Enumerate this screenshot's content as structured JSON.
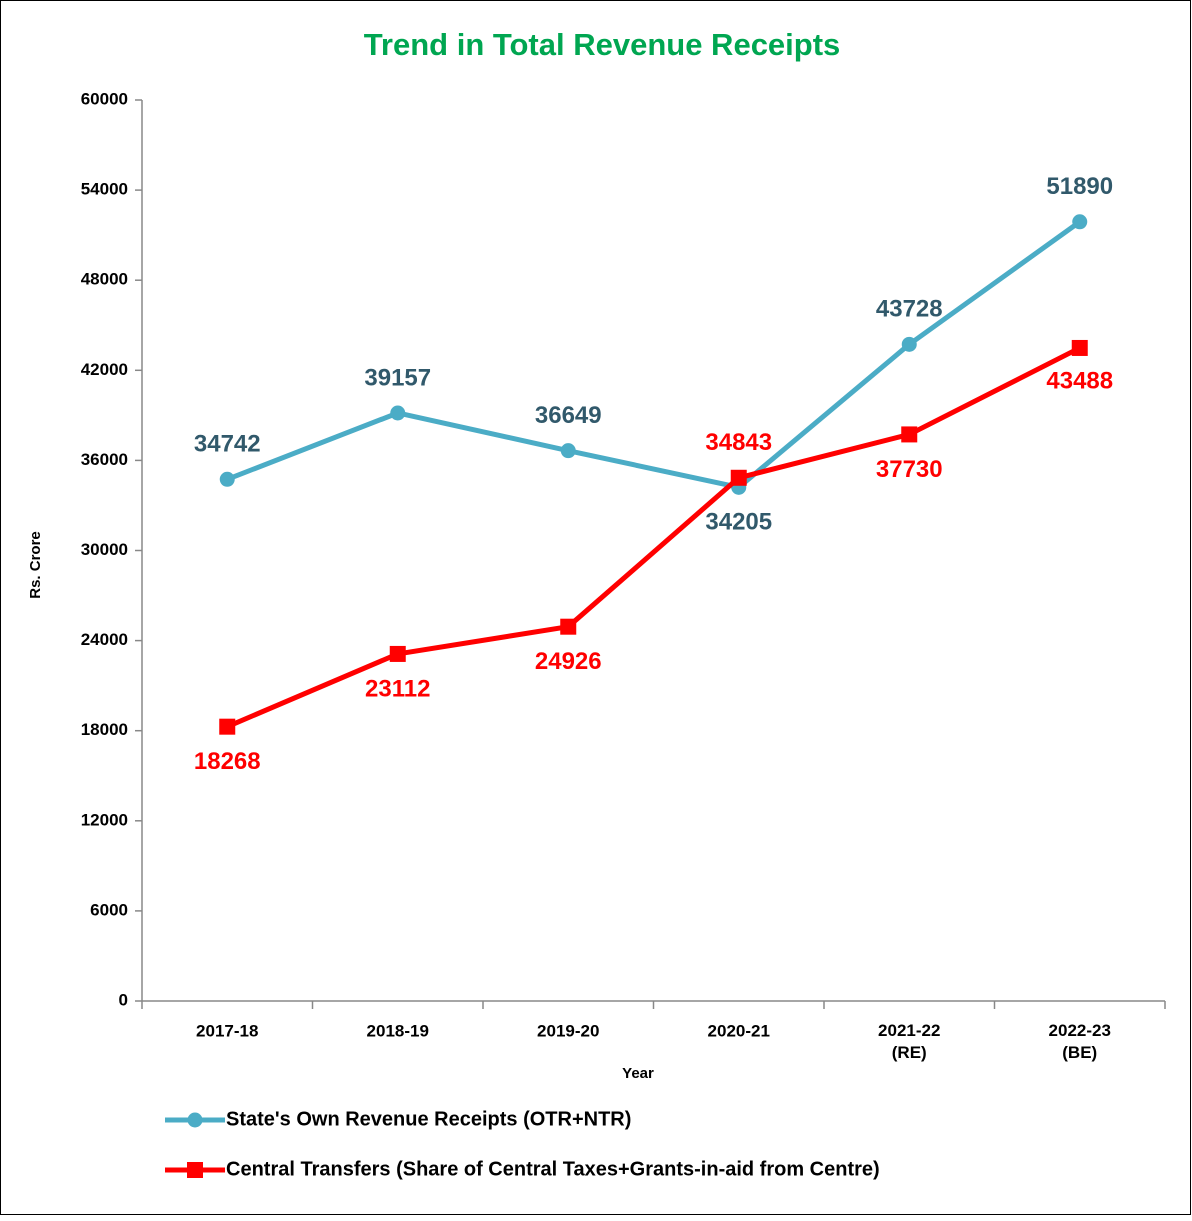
{
  "chart_data": {
    "type": "line",
    "title": "Trend in Total Revenue Receipts",
    "x_label": "Year",
    "y_label": "Rs. Crore",
    "categories": [
      "2017-18",
      "2018-19",
      "2019-20",
      "2020-21",
      "2021-22 (RE)",
      "2022-23 (BE)"
    ],
    "series": [
      {
        "name": "State's Own Revenue Receipts (OTR+NTR)",
        "color": "#4bacc6",
        "label_color": "#31596b",
        "marker": "circle",
        "values": [
          34742,
          39157,
          36649,
          34205,
          43728,
          51890
        ]
      },
      {
        "name": "Central Transfers (Share of Central Taxes+Grants-in-aid from Centre)",
        "color": "#ff0000",
        "label_color": "#ff0000",
        "marker": "square",
        "values": [
          18268,
          23112,
          24926,
          34843,
          37730,
          43488
        ]
      }
    ],
    "ylim": [
      0,
      60000
    ],
    "yticks": [
      0,
      6000,
      12000,
      18000,
      24000,
      30000,
      36000,
      42000,
      48000,
      54000,
      60000
    ],
    "grid": false,
    "title_color": "#00a651"
  }
}
